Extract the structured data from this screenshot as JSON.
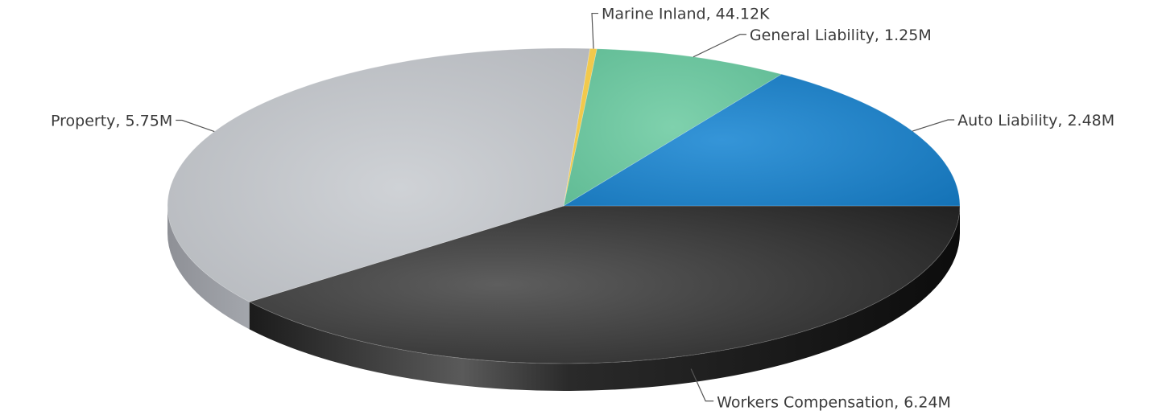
{
  "chart_data": {
    "type": "pie",
    "style": "3d",
    "slices": [
      {
        "label": "Workers Compensation, 6.24M",
        "value": 6.24,
        "color": "#2f2f2f"
      },
      {
        "label": "Property, 5.75M",
        "value": 5.75,
        "color": "#b9bcc1"
      },
      {
        "label": "Marine Inland, 44.12K",
        "value": 0.04412,
        "color": "#f2c94c"
      },
      {
        "label": "General Liability, 1.25M",
        "value": 1.25,
        "color": "#6cc4a0"
      },
      {
        "label": "Auto Liability, 2.48M",
        "value": 2.48,
        "color": "#1c7fc4"
      }
    ]
  }
}
